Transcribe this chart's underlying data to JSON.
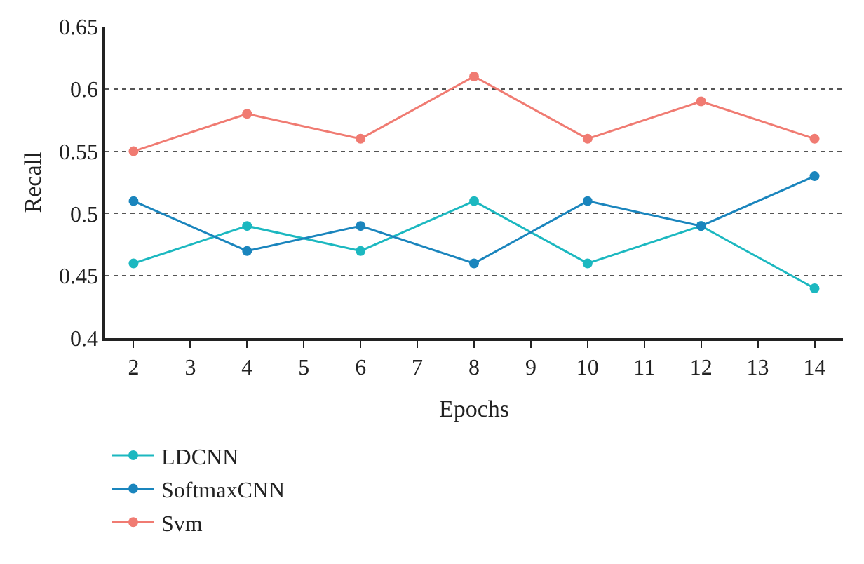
{
  "chart_data": {
    "type": "line",
    "xlabel": "Epochs",
    "ylabel": "Recall",
    "x": [
      2,
      4,
      6,
      8,
      10,
      12,
      14
    ],
    "series": [
      {
        "name": "LDCNN",
        "color": "#1cb8c0",
        "values": [
          0.46,
          0.49,
          0.47,
          0.51,
          0.46,
          0.49,
          0.44
        ]
      },
      {
        "name": "SoftmaxCNN",
        "color": "#1a85bd",
        "values": [
          0.51,
          0.47,
          0.49,
          0.46,
          0.51,
          0.49,
          0.53
        ]
      },
      {
        "name": "Svm",
        "color": "#f07b72",
        "values": [
          0.55,
          0.58,
          0.56,
          0.61,
          0.56,
          0.59,
          0.56
        ]
      }
    ],
    "xlim": [
      1.5,
      14.5
    ],
    "xticks": [
      2,
      3,
      4,
      5,
      6,
      7,
      8,
      9,
      10,
      11,
      12,
      13,
      14
    ],
    "ylim": [
      0.4,
      0.65
    ],
    "yticks": [
      0.4,
      0.45,
      0.5,
      0.55,
      0.6,
      0.65
    ],
    "grid": "y",
    "legend": "bottom left",
    "marker": "circle",
    "line_style": "solid"
  }
}
